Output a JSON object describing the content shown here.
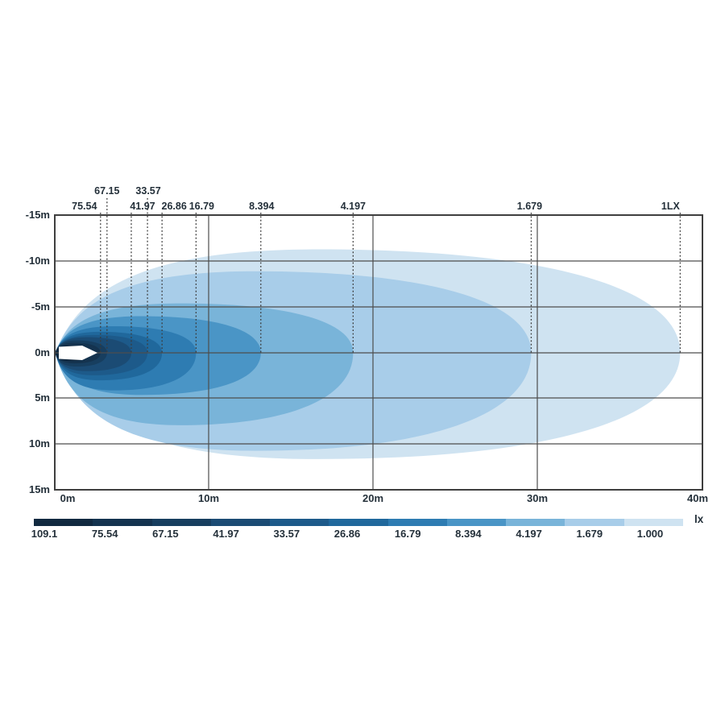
{
  "chart_data": {
    "type": "heatmap",
    "subtype": "isolux-beam-contour-diagram",
    "title": "",
    "unit": "lx",
    "legend_unit": "lx",
    "x_axis": {
      "ticks": [
        "0m",
        "10m",
        "20m",
        "30m",
        "40m"
      ],
      "range_m": [
        0,
        40
      ],
      "grid": true
    },
    "y_axis": {
      "ticks": [
        "-15m",
        "-10m",
        "-5m",
        "0m",
        "5m",
        "10m",
        "15m"
      ],
      "range_m": [
        -15,
        15
      ],
      "grid": true
    },
    "legend_labels": [
      "109.1",
      "75.54",
      "67.15",
      "41.97",
      "33.57",
      "26.86",
      "16.79",
      "8.394",
      "4.197",
      "1.679",
      "1.000"
    ],
    "levels": [
      {
        "label": "109.1",
        "value_lx": 109.1,
        "reach_m": 2.2,
        "half_top_m": 0.8,
        "half_bot_m": 0.9,
        "color": "#112940",
        "marker": false
      },
      {
        "label": "75.54",
        "value_lx": 75.54,
        "reach_m": 2.8,
        "half_top_m": 1.1,
        "half_bot_m": 1.15,
        "color": "#14334f",
        "marker": true
      },
      {
        "label": "67.15",
        "value_lx": 67.15,
        "reach_m": 3.2,
        "half_top_m": 1.35,
        "half_bot_m": 1.5,
        "color": "#173e5f",
        "marker": true
      },
      {
        "label": "41.97",
        "value_lx": 41.97,
        "reach_m": 4.7,
        "half_top_m": 1.7,
        "half_bot_m": 2.0,
        "color": "#1b4b74",
        "marker": true
      },
      {
        "label": "33.57",
        "value_lx": 33.57,
        "reach_m": 5.7,
        "half_top_m": 1.95,
        "half_bot_m": 2.45,
        "color": "#1d5a8a",
        "marker": true
      },
      {
        "label": "26.86",
        "value_lx": 26.86,
        "reach_m": 6.6,
        "half_top_m": 2.3,
        "half_bot_m": 3.0,
        "color": "#20689c",
        "marker": true
      },
      {
        "label": "16.79",
        "value_lx": 16.79,
        "reach_m": 8.7,
        "half_top_m": 2.9,
        "half_bot_m": 4.1,
        "color": "#2e7cb2",
        "marker": true
      },
      {
        "label": "8.394",
        "value_lx": 8.394,
        "reach_m": 12.7,
        "half_top_m": 4.0,
        "half_bot_m": 4.6,
        "color": "#4a95c6",
        "marker": true
      },
      {
        "label": "4.197",
        "value_lx": 4.197,
        "reach_m": 18.4,
        "half_top_m": 5.4,
        "half_bot_m": 7.9,
        "color": "#79b4d9",
        "marker": true
      },
      {
        "label": "1.679",
        "value_lx": 1.679,
        "reach_m": 29.4,
        "half_top_m": 8.9,
        "half_bot_m": 10.7,
        "color": "#a8cde9",
        "marker": true
      },
      {
        "label": "1.000",
        "value_lx": 1.0,
        "reach_m": 38.6,
        "half_top_m": 11.3,
        "half_bot_m": 11.6,
        "color": "#cfe3f1",
        "marker": true,
        "marker_label": "1LX"
      }
    ],
    "lamp": {
      "present": true,
      "color": "#ffffff"
    }
  }
}
